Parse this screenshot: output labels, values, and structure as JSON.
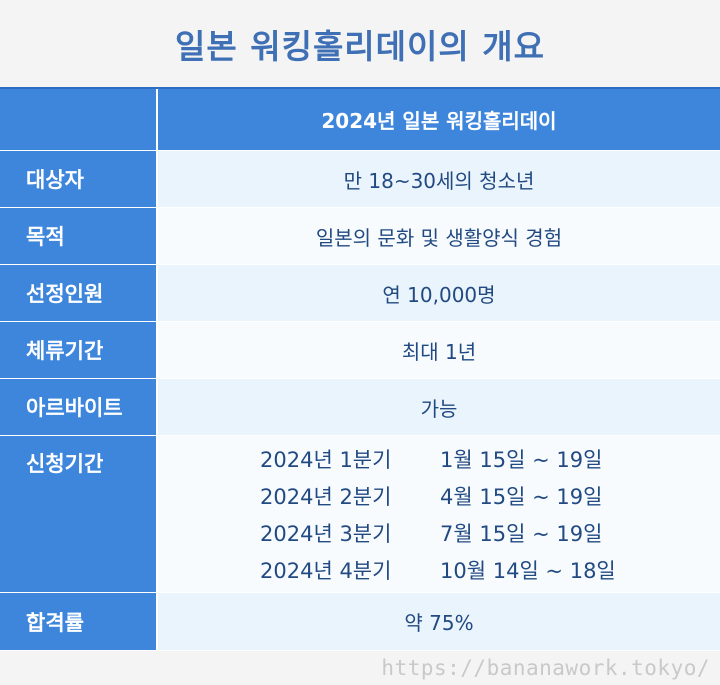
{
  "title": "일본 워킹홀리데이의 개요",
  "header": {
    "label": "",
    "value": "2024년 일본 워킹홀리데이"
  },
  "rows": [
    {
      "label": "대상자",
      "value": "만 18~30세의 청소년"
    },
    {
      "label": "목적",
      "value": "일본의 문화 및 생활양식 경험"
    },
    {
      "label": "선정인원",
      "value": "연 10,000명"
    },
    {
      "label": "체류기간",
      "value": "최대 1년"
    },
    {
      "label": "아르바이트",
      "value": "가능"
    }
  ],
  "application": {
    "label": "신청기간",
    "periods": [
      {
        "quarter": "2024년 1분기",
        "dates": "1월 15일 ~ 19일"
      },
      {
        "quarter": "2024년 2분기",
        "dates": "4월 15일 ~ 19일"
      },
      {
        "quarter": "2024년 3분기",
        "dates": "7월 15일 ~ 19일"
      },
      {
        "quarter": "2024년 4분기",
        "dates": "10월 14일 ~ 18일"
      }
    ]
  },
  "pass_rate": {
    "label": "합격률",
    "value": "약 75%"
  },
  "watermark": "https://bananawork.tokyo/"
}
